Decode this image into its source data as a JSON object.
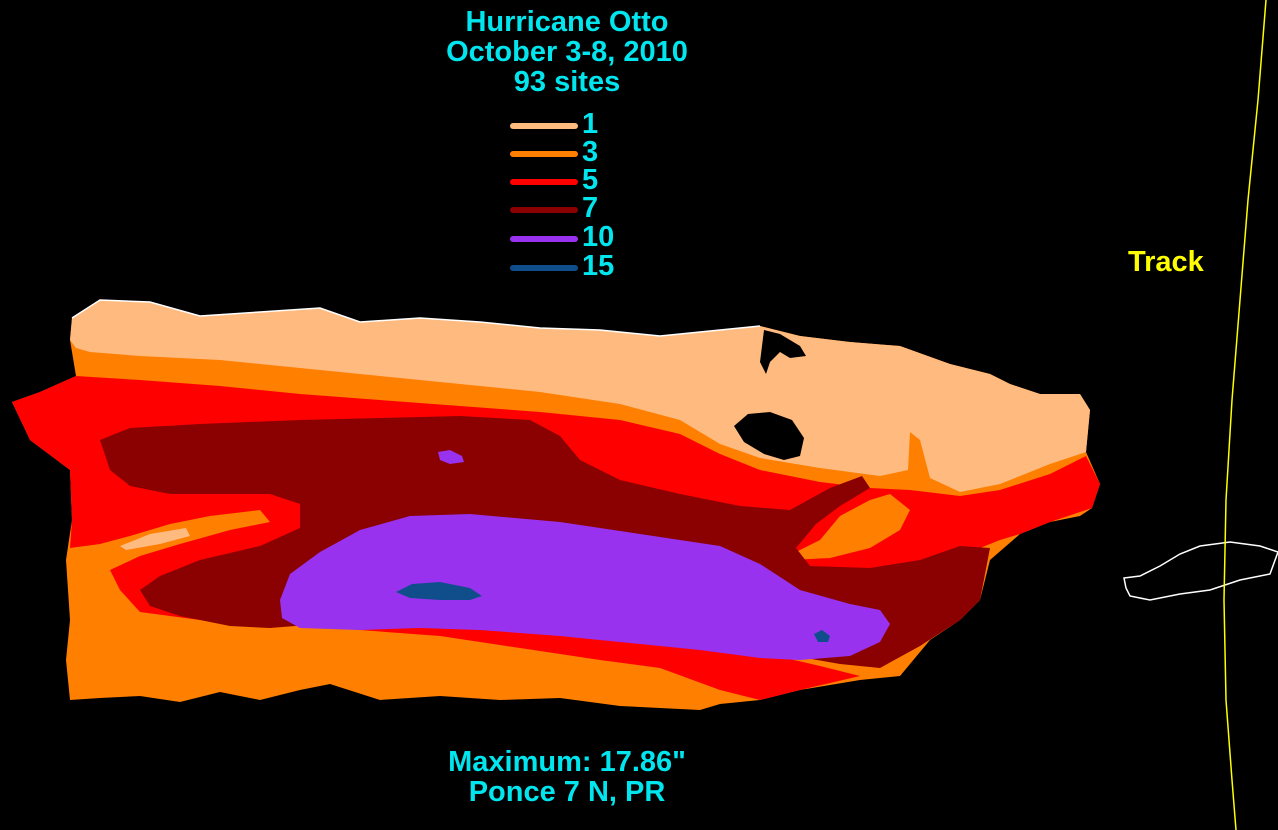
{
  "title": {
    "line1": "Hurricane Otto",
    "line2": "October 3-8, 2010",
    "line3": "93 sites"
  },
  "legend": [
    {
      "label": "1",
      "color": "#ffbb7f"
    },
    {
      "label": "3",
      "color": "#ff7f00"
    },
    {
      "label": "5",
      "color": "#ff0000"
    },
    {
      "label": "7",
      "color": "#8b0000"
    },
    {
      "label": "10",
      "color": "#9932ee"
    },
    {
      "label": "15",
      "color": "#104e8b"
    }
  ],
  "track": {
    "label": "Track",
    "color": "#ffff00"
  },
  "maximum": {
    "line1": "Maximum:  17.86\"",
    "line2": "Ponce 7 N, PR"
  },
  "colors": {
    "background": "#000000",
    "text": "#00e5ee",
    "coastline": "#ffffff"
  }
}
